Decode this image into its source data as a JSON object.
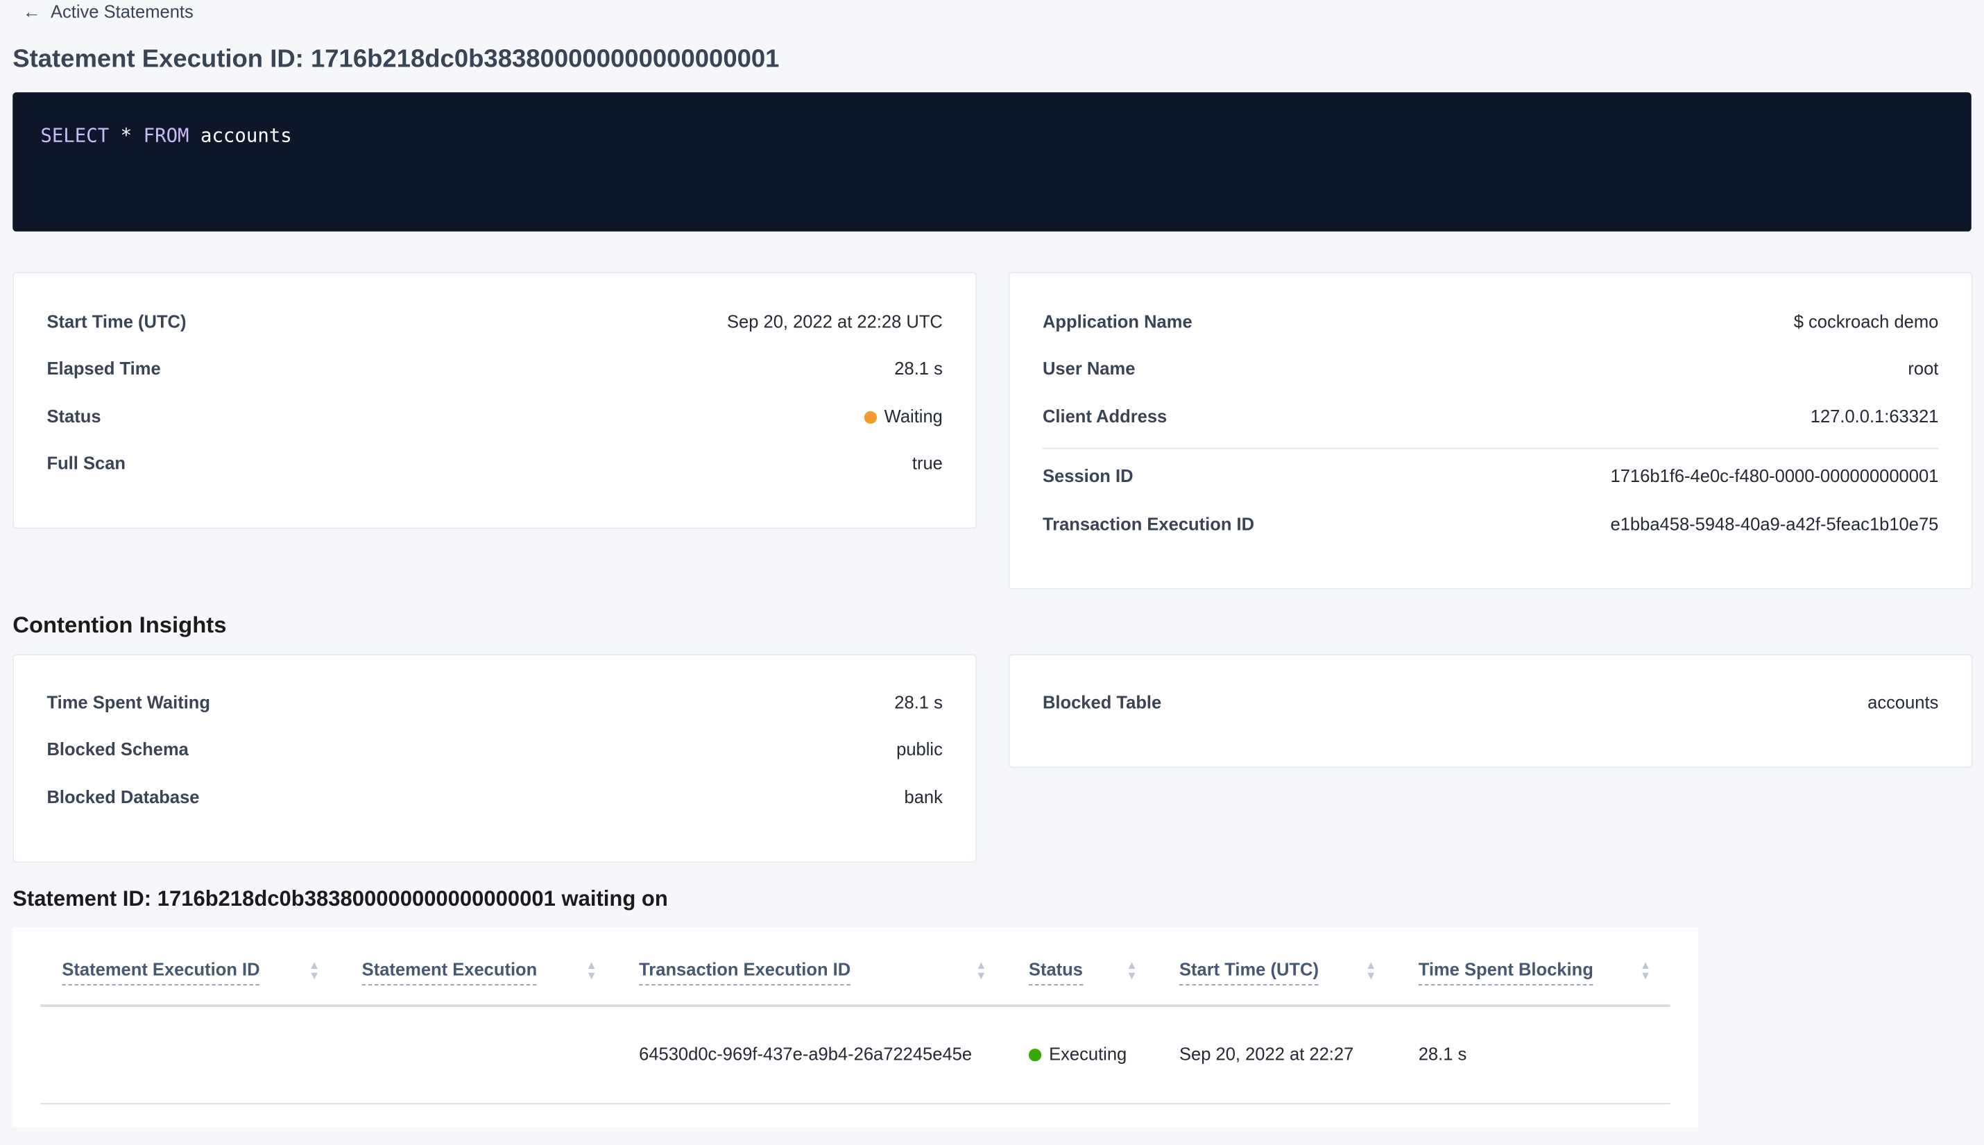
{
  "nav": {
    "back_label": "Active Statements"
  },
  "header": {
    "title": "Statement Execution ID: 1716b218dc0b383800000000000000001"
  },
  "sql": {
    "keyword1": "SELECT",
    "star": "*",
    "keyword2": "FROM",
    "table": "accounts"
  },
  "details": {
    "start_time": {
      "label": "Start Time (UTC)",
      "value": "Sep 20, 2022 at 22:28 UTC"
    },
    "elapsed": {
      "label": "Elapsed Time",
      "value": "28.1 s"
    },
    "status": {
      "label": "Status",
      "value": "Waiting",
      "color": "#f79a2e"
    },
    "full_scan": {
      "label": "Full Scan",
      "value": "true"
    }
  },
  "session": {
    "app_name": {
      "label": "Application Name",
      "value": "$ cockroach demo"
    },
    "user_name": {
      "label": "User Name",
      "value": "root"
    },
    "client_address": {
      "label": "Client Address",
      "value": "127.0.0.1:63321"
    },
    "session_id": {
      "label": "Session ID",
      "value": "1716b1f6-4e0c-f480-0000-000000000001"
    },
    "txn_id": {
      "label": "Transaction Execution ID",
      "value": "e1bba458-5948-40a9-a42f-5feac1b10e75"
    }
  },
  "contention": {
    "heading": "Contention Insights",
    "time_waiting": {
      "label": "Time Spent Waiting",
      "value": "28.1 s"
    },
    "schema": {
      "label": "Blocked Schema",
      "value": "public"
    },
    "database": {
      "label": "Blocked Database",
      "value": "bank"
    },
    "table": {
      "label": "Blocked Table",
      "value": "accounts"
    }
  },
  "waiting": {
    "heading": "Statement ID: 1716b218dc0b383800000000000000001 waiting on",
    "columns": [
      "Statement Execution ID",
      "Statement Execution",
      "Transaction Execution ID",
      "Status",
      "Start Time (UTC)",
      "Time Spent Blocking"
    ],
    "rows": [
      {
        "stmt_exec_id": "",
        "stmt_exec": "",
        "txn_exec_id": "64530d0c-969f-437e-a9b4-26a72245e45e",
        "status": "Executing",
        "status_color": "#37a806",
        "start_time": "Sep 20, 2022 at 22:27",
        "time_blocking": "28.1 s"
      }
    ]
  }
}
